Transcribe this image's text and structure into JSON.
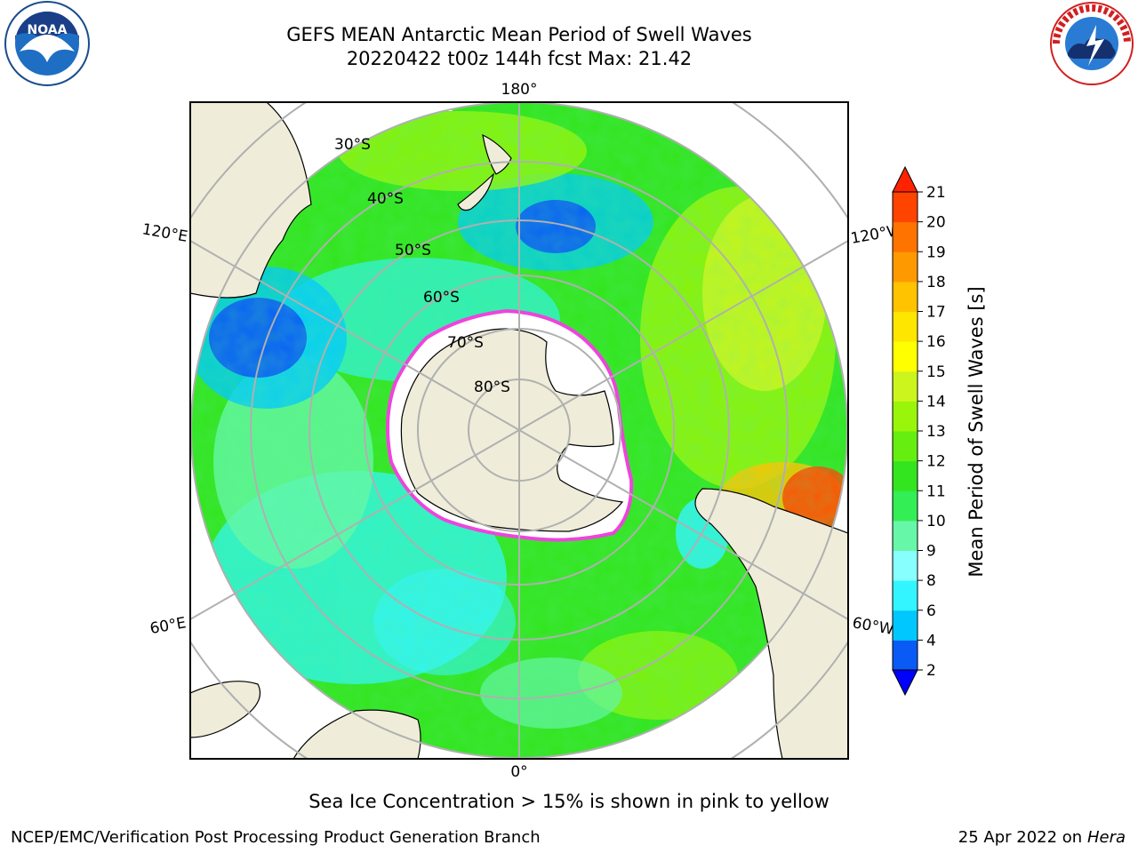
{
  "title": {
    "line1": "GEFS MEAN Antarctic Mean Period of Swell Waves",
    "line2": "20220422 t00z 144h fcst   Max: 21.42"
  },
  "logos": {
    "left": "noaa-logo",
    "right": "nws-logo"
  },
  "map": {
    "projection": "south-polar-stereographic",
    "longitude_labels": [
      {
        "text": "180°",
        "lon": 180
      },
      {
        "text": "120°E",
        "lon": 120
      },
      {
        "text": "120°W",
        "lon": -120
      },
      {
        "text": "60°E",
        "lon": 60
      },
      {
        "text": "60°W",
        "lon": -60
      },
      {
        "text": "0°",
        "lon": 0
      }
    ],
    "latitude_labels": [
      "30°S",
      "40°S",
      "50°S",
      "60°S",
      "70°S",
      "80°S"
    ],
    "colors": {
      "land": "#efedd9",
      "ice": "#ffffff",
      "grid": "#b0b0b0",
      "ice_edge": "#ee44dd"
    }
  },
  "colorbar": {
    "label": "Mean Period of Swell Waves [s]",
    "ticks": [
      "2",
      "4",
      "6",
      "8",
      "9",
      "10",
      "11",
      "12",
      "13",
      "14",
      "15",
      "16",
      "17",
      "18",
      "19",
      "20",
      "21"
    ],
    "bounds": [
      2,
      4,
      6,
      8,
      9,
      10,
      11,
      12,
      13,
      14,
      15,
      16,
      17,
      18,
      19,
      20,
      21
    ],
    "colors": [
      "#0a5af5",
      "#00c8ff",
      "#33f5ff",
      "#88ffff",
      "#66f7a8",
      "#33ee55",
      "#33e51e",
      "#66ee11",
      "#99f50a",
      "#ccf51e",
      "#ffff00",
      "#ffe600",
      "#ffc300",
      "#ff9900",
      "#ff7300",
      "#ff4400"
    ],
    "under_color": "#0000ff",
    "over_color": "#ff2200"
  },
  "note": "Sea Ice Concentration > 15% is shown in pink to yellow",
  "footer": {
    "left": "NCEP/EMC/Verification Post Processing Product Generation Branch",
    "date": "25 Apr 2022 on ",
    "machine": "Hera"
  }
}
